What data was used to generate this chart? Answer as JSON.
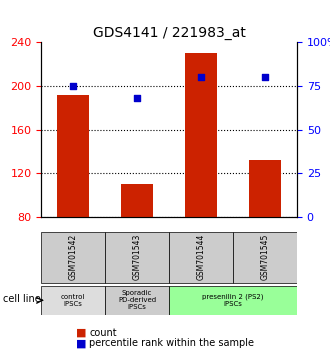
{
  "title": "GDS4141 / 221983_at",
  "samples": [
    "GSM701542",
    "GSM701543",
    "GSM701544",
    "GSM701545"
  ],
  "counts": [
    192,
    110,
    230,
    132
  ],
  "percentiles": [
    75,
    68,
    80,
    80
  ],
  "ylim_left": [
    80,
    240
  ],
  "ylim_right": [
    0,
    100
  ],
  "yticks_left": [
    80,
    120,
    160,
    200,
    240
  ],
  "yticks_right": [
    0,
    25,
    50,
    75,
    100
  ],
  "bar_color": "#cc2200",
  "dot_color": "#0000cc",
  "grid_color": "#000000",
  "groups": [
    {
      "label": "control\nIPSCs",
      "start": 0,
      "end": 1,
      "color": "#dddddd"
    },
    {
      "label": "Sporadic\nPD-derived\niPSCs",
      "start": 1,
      "end": 2,
      "color": "#cccccc"
    },
    {
      "label": "presenilin 2 (PS2)\niPSCs",
      "start": 2,
      "end": 4,
      "color": "#99ff99"
    }
  ],
  "cell_line_label": "cell line",
  "legend_count": "count",
  "legend_percentile": "percentile rank within the sample",
  "bar_width": 0.5
}
